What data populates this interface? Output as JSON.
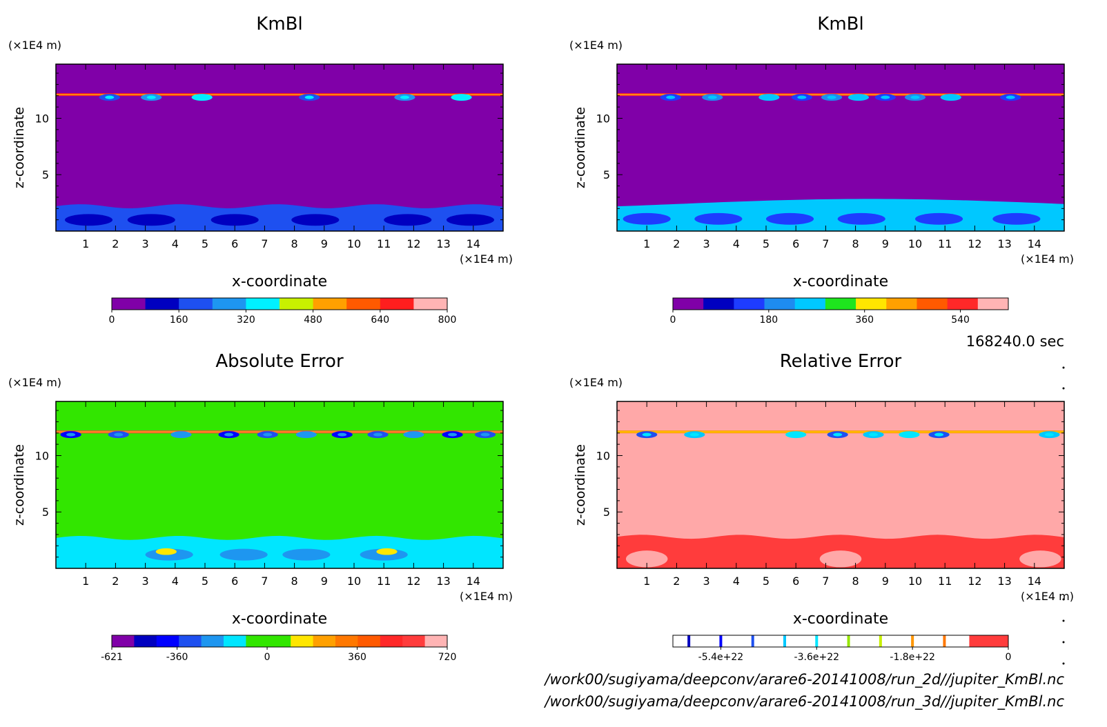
{
  "time_label": "168240.0 sec",
  "files": [
    "/work00/sugiyama/deepconv/arare6-20141008/run_2d//jupiter_KmBl.nc",
    "/work00/sugiyama/deepconv/arare6-20141008/run_3d//jupiter_KmBl.nc"
  ],
  "chart_data": [
    {
      "type": "heatmap",
      "title": "KmBl",
      "xlabel": "x-coordinate",
      "ylabel": "z-coordinate",
      "x_unit": "(×1E4 m)",
      "y_unit": "(×1E4 m)",
      "xlim": [
        0,
        15
      ],
      "ylim": [
        0,
        14.8
      ],
      "x_ticks": [
        1,
        2,
        3,
        4,
        5,
        6,
        7,
        8,
        9,
        10,
        11,
        12,
        13,
        14
      ],
      "y_ticks": [
        5,
        10
      ],
      "colorbar": {
        "levels": [
          0,
          80,
          160,
          240,
          320,
          400,
          480,
          560,
          640,
          720,
          800
        ],
        "tick_labels": [
          "0",
          "160",
          "320",
          "480",
          "640",
          "800"
        ],
        "tick_values": [
          0,
          160,
          320,
          480,
          640,
          800
        ],
        "colors": [
          "#8000a8",
          "#0000c0",
          "#1e50f0",
          "#1e96f0",
          "#00f0ff",
          "#c8f000",
          "#ffa000",
          "#ff5a00",
          "#ff1e1e",
          "#ffb4b4"
        ]
      },
      "background": "#8000a8",
      "features": {
        "upper_band_z": 12.1,
        "upper_band_blobs_x": [
          1.8,
          3.2,
          4.9,
          8.5,
          11.7,
          13.6
        ],
        "lower_layer_top_z": 2.2,
        "lower_layer_color": "#1e50f0",
        "lower_cells_x": [
          1.1,
          3.2,
          6.0,
          8.7,
          11.8,
          13.9
        ],
        "lower_cells_color": "#0000c0"
      }
    },
    {
      "type": "heatmap",
      "title": "KmBl",
      "xlabel": "x-coordinate",
      "ylabel": "z-coordinate",
      "x_unit": "(×1E4 m)",
      "y_unit": "(×1E4 m)",
      "xlim": [
        0,
        15
      ],
      "ylim": [
        0,
        14.8
      ],
      "x_ticks": [
        1,
        2,
        3,
        4,
        5,
        6,
        7,
        8,
        9,
        10,
        11,
        12,
        13,
        14
      ],
      "y_ticks": [
        5,
        10
      ],
      "colorbar": {
        "levels": [
          0,
          60,
          120,
          180,
          240,
          300,
          360,
          420,
          480,
          540,
          600,
          630
        ],
        "tick_labels": [
          "0",
          "180",
          "360",
          "540"
        ],
        "tick_values": [
          0,
          180,
          360,
          540
        ],
        "colors": [
          "#8000a8",
          "#0000c0",
          "#1e3cff",
          "#1e8cf0",
          "#00c8ff",
          "#1ee61e",
          "#ffe600",
          "#ffa000",
          "#ff5a00",
          "#ff2828",
          "#ffb4b4"
        ]
      },
      "background": "#8000a8",
      "features": {
        "upper_band_z": 12.1,
        "upper_band_blobs_x": [
          1.8,
          3.2,
          5.1,
          6.2,
          7.2,
          8.1,
          9.0,
          10.0,
          11.2,
          13.2
        ],
        "lower_layer_top_z": 2.4,
        "lower_layer_color": "#00c8ff",
        "lower_cells_x": [
          1.0,
          3.4,
          5.8,
          8.2,
          10.8,
          13.4
        ],
        "lower_cells_color": "#1e3cff"
      }
    },
    {
      "type": "heatmap",
      "title": "Absolute Error",
      "xlabel": "x-coordinate",
      "ylabel": "z-coordinate",
      "x_unit": "(×1E4 m)",
      "y_unit": "(×1E4 m)",
      "xlim": [
        0,
        15
      ],
      "ylim": [
        0,
        14.8
      ],
      "x_ticks": [
        1,
        2,
        3,
        4,
        5,
        6,
        7,
        8,
        9,
        10,
        11,
        12,
        13,
        14
      ],
      "y_ticks": [
        5,
        10
      ],
      "colorbar": {
        "levels": [
          -621,
          -540,
          -450,
          -360,
          -270,
          -180,
          -90,
          0,
          90,
          180,
          270,
          360,
          450,
          540,
          630,
          720
        ],
        "tick_labels": [
          "-621",
          "-360",
          "0",
          "360",
          "720"
        ],
        "tick_values": [
          -621,
          -360,
          0,
          360,
          720
        ],
        "colors": [
          "#8000a8",
          "#0000c0",
          "#0000ff",
          "#1e50f0",
          "#1e96f0",
          "#00e6ff",
          "#32e600",
          "#32e600",
          "#ffe600",
          "#ffa000",
          "#ff7800",
          "#ff5a00",
          "#ff2828",
          "#ff3c3c",
          "#ffb4b4"
        ]
      },
      "background": "#32e600",
      "features": {
        "upper_band_z": 12.1,
        "upper_band_blobs_x": [
          0.5,
          2.1,
          4.2,
          5.8,
          7.1,
          8.4,
          9.6,
          10.8,
          12.0,
          13.3,
          14.4
        ],
        "lower_layer_top_z": 2.7,
        "lower_layer_color": "#00e6ff",
        "lower_cells_x": [
          3.8,
          6.3,
          8.4,
          11.0
        ],
        "lower_cells_color": "#1e96f0",
        "lower_hot_x": [
          3.7,
          11.1
        ],
        "lower_hot_color": "#ffe600"
      }
    },
    {
      "type": "heatmap",
      "title": "Relative Error",
      "xlabel": "x-coordinate",
      "ylabel": "z-coordinate",
      "x_unit": "(×1E4 m)",
      "y_unit": "(×1E4 m)",
      "xlim": [
        0,
        15
      ],
      "ylim": [
        0,
        14.8
      ],
      "x_ticks": [
        1,
        2,
        3,
        4,
        5,
        6,
        7,
        8,
        9,
        10,
        11,
        12,
        13,
        14
      ],
      "y_ticks": [
        5,
        10
      ],
      "colorbar": {
        "levels": [
          -6.3e+22,
          -5.4e+22,
          -3.6e+22,
          -1.8e+22,
          0
        ],
        "tick_labels": [
          "-5.4e+22",
          "-3.6e+22",
          "-1.8e+22",
          "0"
        ],
        "tick_values": [
          -5.4e+22,
          -3.6e+22,
          -1.8e+22,
          0
        ],
        "line_positions": [
          -6e+22,
          -5.4e+22,
          -4.8e+22,
          -4.2e+22,
          -3.6e+22,
          -3e+22,
          -2.4e+22,
          -1.8e+22,
          -1.2e+22
        ],
        "line_colors": [
          "#0000c0",
          "#0000ff",
          "#1e50f0",
          "#00c8ff",
          "#00e6ff",
          "#96e600",
          "#c8f000",
          "#ff9600",
          "#ff7800"
        ],
        "last_color": "#ff3c3c"
      },
      "background": "#ffa8a8",
      "features": {
        "upper_band_z": 12.1,
        "upper_band_blobs_x": [
          1.0,
          2.6,
          6.0,
          7.4,
          8.6,
          9.8,
          10.8,
          14.5
        ],
        "lower_layer_top_z": 2.8,
        "lower_layer_color": "#ff3c3c",
        "lower_pink_x": [
          1.0,
          7.5,
          14.2
        ],
        "lower_pink_color": "#ffa8a8"
      }
    }
  ]
}
